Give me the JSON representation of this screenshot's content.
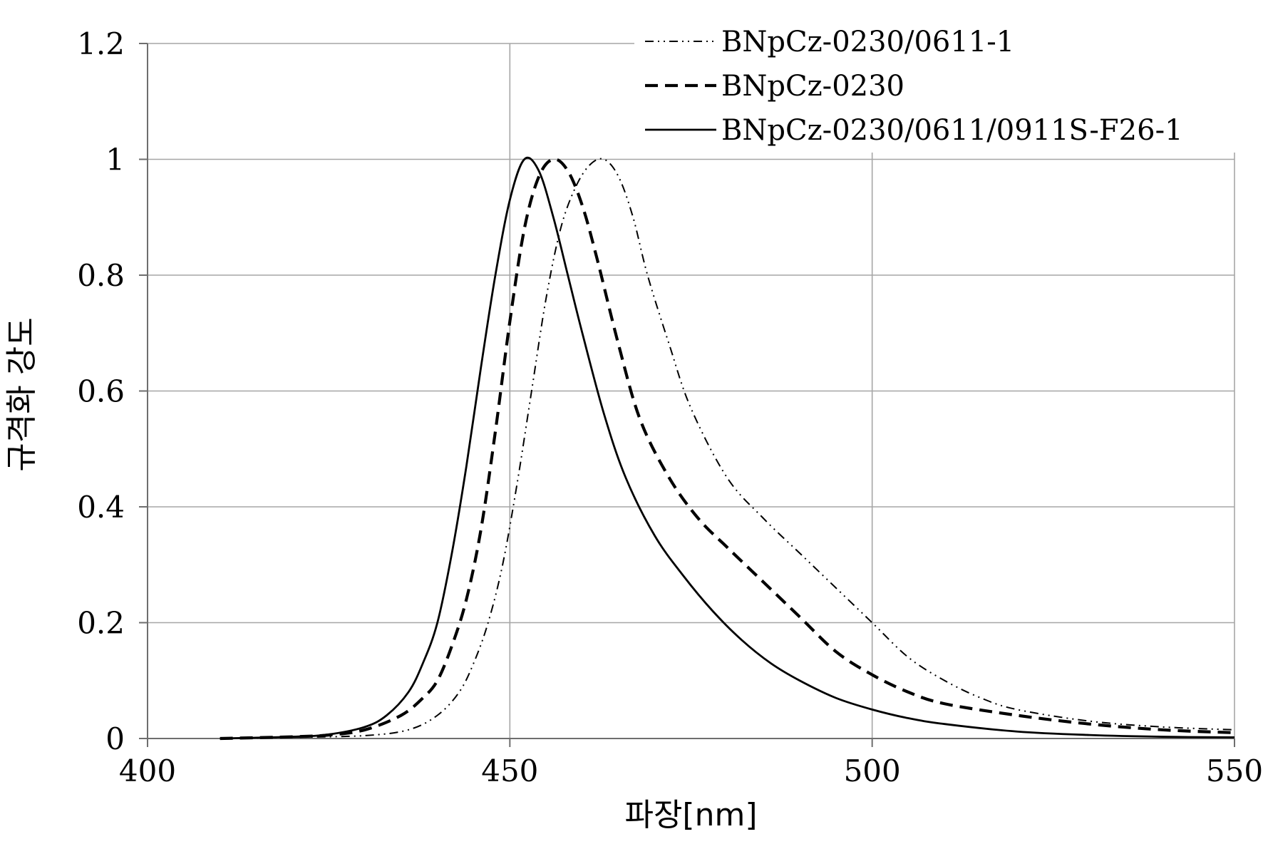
{
  "chart_data": {
    "type": "line",
    "title": "",
    "xlabel": "파장[nm]",
    "ylabel": "규격화 강도",
    "xlim": [
      400,
      550
    ],
    "ylim": [
      0,
      1.2
    ],
    "x_ticks": [
      400,
      450,
      500,
      550
    ],
    "x_tick_labels": [
      "400",
      "450",
      "500",
      "550"
    ],
    "y_ticks": [
      0,
      0.2,
      0.4,
      0.6,
      0.8,
      1.0,
      1.2
    ],
    "y_tick_labels": [
      "0",
      "0.2",
      "0.4",
      "0.6",
      "0.8",
      "1",
      "1.2"
    ],
    "grid": true,
    "legend_position": "top-right",
    "series": [
      {
        "name": "BNpCz-0230/0611-1",
        "line_style": "dash-dot-dot",
        "color": "#000000",
        "x": [
          410,
          420,
          430,
          436,
          440,
          443,
          445,
          447,
          449,
          451,
          453,
          455,
          457,
          459,
          461,
          463,
          465,
          467,
          469,
          472,
          475,
          480,
          485,
          490,
          495,
          500,
          505,
          510,
          515,
          520,
          530,
          540,
          550
        ],
        "y": [
          0,
          0.002,
          0.005,
          0.015,
          0.04,
          0.08,
          0.13,
          0.2,
          0.3,
          0.44,
          0.6,
          0.76,
          0.88,
          0.95,
          0.99,
          1.0,
          0.97,
          0.9,
          0.8,
          0.68,
          0.57,
          0.45,
          0.38,
          0.32,
          0.26,
          0.2,
          0.14,
          0.1,
          0.07,
          0.05,
          0.03,
          0.02,
          0.015
        ]
      },
      {
        "name": "BNpCz-0230",
        "line_style": "dashed",
        "color": "#000000",
        "x": [
          410,
          420,
          425,
          430,
          435,
          438,
          440,
          442,
          444,
          446,
          448,
          450,
          452,
          454,
          456,
          458,
          460,
          462,
          465,
          468,
          472,
          476,
          480,
          485,
          490,
          495,
          500,
          505,
          510,
          520,
          530,
          540,
          550
        ],
        "y": [
          0,
          0.003,
          0.006,
          0.015,
          0.04,
          0.07,
          0.1,
          0.16,
          0.24,
          0.36,
          0.53,
          0.72,
          0.88,
          0.97,
          1.0,
          0.98,
          0.92,
          0.83,
          0.68,
          0.55,
          0.45,
          0.38,
          0.33,
          0.27,
          0.21,
          0.15,
          0.11,
          0.08,
          0.06,
          0.04,
          0.025,
          0.015,
          0.01
        ]
      },
      {
        "name": "BNpCz-0230/0611/0911S-F26-1",
        "line_style": "solid",
        "color": "#000000",
        "x": [
          410,
          420,
          425,
          430,
          433,
          436,
          438,
          440,
          442,
          444,
          446,
          448,
          450,
          452,
          454,
          456,
          458,
          460,
          463,
          466,
          470,
          474,
          478,
          482,
          486,
          490,
          495,
          500,
          505,
          510,
          520,
          530,
          540,
          550
        ],
        "y": [
          0,
          0.003,
          0.007,
          0.02,
          0.04,
          0.08,
          0.13,
          0.2,
          0.32,
          0.47,
          0.64,
          0.8,
          0.93,
          1.0,
          0.98,
          0.9,
          0.8,
          0.7,
          0.56,
          0.45,
          0.35,
          0.28,
          0.22,
          0.17,
          0.13,
          0.1,
          0.07,
          0.05,
          0.035,
          0.025,
          0.012,
          0.006,
          0.003,
          0.002
        ]
      }
    ]
  }
}
